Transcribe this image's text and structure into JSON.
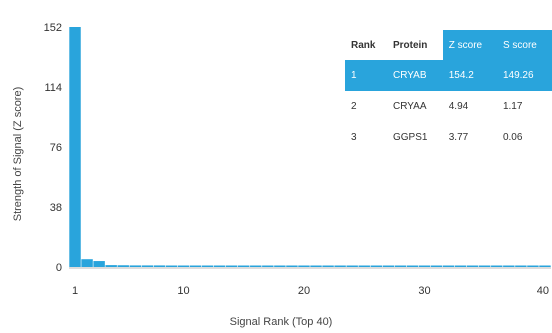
{
  "colors": {
    "bar": "#29a4dc",
    "axis": "#bbbbbb",
    "header_highlight": "#29a4dc"
  },
  "chart_data": {
    "type": "bar",
    "xlabel": "Signal Rank (Top 40)",
    "ylabel": "Strength of Signal (Z score)",
    "ylim": [
      0,
      152
    ],
    "xlim": [
      1,
      40
    ],
    "yticks": [
      0,
      38,
      76,
      114,
      152
    ],
    "xticks": [
      1,
      10,
      20,
      30,
      40
    ],
    "x": [
      1,
      2,
      3,
      4,
      5,
      6,
      7,
      8,
      9,
      10,
      11,
      12,
      13,
      14,
      15,
      16,
      17,
      18,
      19,
      20,
      21,
      22,
      23,
      24,
      25,
      26,
      27,
      28,
      29,
      30,
      31,
      32,
      33,
      34,
      35,
      36,
      37,
      38,
      39,
      40
    ],
    "values": [
      154.2,
      4.94,
      3.77,
      1.2,
      1.1,
      1.0,
      1.0,
      1.0,
      0.9,
      0.9,
      0.9,
      0.9,
      0.9,
      0.9,
      0.8,
      0.8,
      0.8,
      0.8,
      0.8,
      0.8,
      0.8,
      0.8,
      0.8,
      0.8,
      0.8,
      0.7,
      0.7,
      0.7,
      0.7,
      0.7,
      0.7,
      0.7,
      0.7,
      0.7,
      0.7,
      0.7,
      0.7,
      0.7,
      0.7,
      0.7
    ],
    "grid": false
  },
  "table": {
    "headers": [
      "Rank",
      "Protein",
      "Z score",
      "S score"
    ],
    "highlight_headers": [
      2,
      3
    ],
    "highlight_row": 0,
    "rows": [
      [
        "1",
        "CRYAB",
        "154.2",
        "149.26"
      ],
      [
        "2",
        "CRYAA",
        "4.94",
        "1.17"
      ],
      [
        "3",
        "GGPS1",
        "3.77",
        "0.06"
      ]
    ]
  }
}
